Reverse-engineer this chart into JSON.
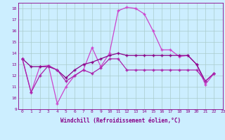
{
  "xlabel": "Windchill (Refroidissement éolien,°C)",
  "bg_color": "#cceeff",
  "grid_color": "#aacccc",
  "xmin": 0,
  "xmax": 23,
  "ymin": 9,
  "ymax": 18,
  "s1": [
    13.5,
    10.5,
    12.8,
    12.9,
    9.5,
    11.0,
    12.0,
    12.5,
    14.5,
    12.8,
    14.0,
    17.8,
    18.1,
    18.0,
    17.5,
    16.0,
    14.3,
    14.3,
    13.7,
    13.8,
    13.0,
    11.2,
    12.2
  ],
  "s2": [
    13.5,
    12.8,
    12.8,
    12.8,
    12.5,
    11.8,
    12.5,
    13.0,
    13.2,
    13.5,
    13.8,
    14.0,
    13.8,
    13.8,
    13.8,
    13.8,
    13.8,
    13.8,
    13.8,
    13.8,
    13.0,
    11.5,
    12.2
  ],
  "s3": [
    13.5,
    10.5,
    12.0,
    12.9,
    12.5,
    11.5,
    12.0,
    12.5,
    12.2,
    12.7,
    13.5,
    13.5,
    12.5,
    12.5,
    12.5,
    12.5,
    12.5,
    12.5,
    12.5,
    12.5,
    12.5,
    11.5,
    12.2
  ],
  "c1": "#cc44cc",
  "c2": "#880088",
  "c3": "#aa22aa",
  "lw": 0.9,
  "ms": 3.5
}
